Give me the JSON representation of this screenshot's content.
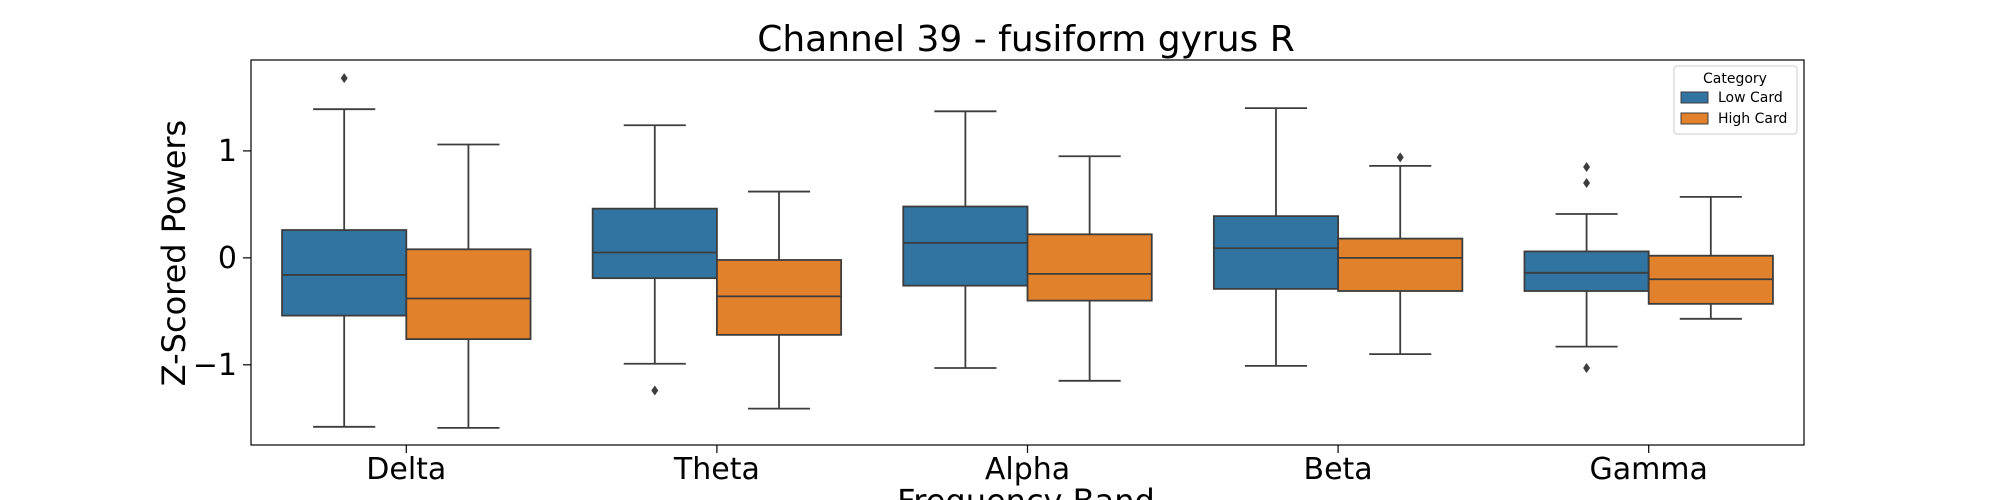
{
  "chart_data": {
    "type": "box",
    "title": "Channel 39 - fusiform gyrus R",
    "xlabel": "Frequency Band",
    "ylabel": "Z-Scored Powers",
    "ylim": [
      -1.75,
      1.85
    ],
    "yticks": [
      1,
      0,
      -1
    ],
    "ytick_labels": [
      "1",
      "0",
      "−1"
    ],
    "categories": [
      "Delta",
      "Theta",
      "Alpha",
      "Beta",
      "Gamma"
    ],
    "legend": {
      "title": "Category",
      "position": "top-right",
      "entries": [
        "Low Card",
        "High Card"
      ]
    },
    "series": [
      {
        "name": "Low Card",
        "color": "#3274a1",
        "boxes": [
          {
            "whisker_low": -1.58,
            "q1": -0.54,
            "median": -0.16,
            "q3": 0.26,
            "whisker_high": 1.39,
            "outliers": [
              1.68
            ]
          },
          {
            "whisker_low": -0.99,
            "q1": -0.19,
            "median": 0.05,
            "q3": 0.46,
            "whisker_high": 1.24,
            "outliers": [
              -1.24
            ]
          },
          {
            "whisker_low": -1.03,
            "q1": -0.26,
            "median": 0.14,
            "q3": 0.48,
            "whisker_high": 1.37,
            "outliers": []
          },
          {
            "whisker_low": -1.01,
            "q1": -0.29,
            "median": 0.09,
            "q3": 0.39,
            "whisker_high": 1.4,
            "outliers": []
          },
          {
            "whisker_low": -0.83,
            "q1": -0.31,
            "median": -0.14,
            "q3": 0.06,
            "whisker_high": 0.41,
            "outliers": [
              0.85,
              0.7,
              -1.03
            ]
          }
        ]
      },
      {
        "name": "High Card",
        "color": "#e1812c",
        "boxes": [
          {
            "whisker_low": -1.59,
            "q1": -0.76,
            "median": -0.38,
            "q3": 0.08,
            "whisker_high": 1.06,
            "outliers": []
          },
          {
            "whisker_low": -1.41,
            "q1": -0.72,
            "median": -0.36,
            "q3": -0.02,
            "whisker_high": 0.62,
            "outliers": []
          },
          {
            "whisker_low": -1.15,
            "q1": -0.4,
            "median": -0.15,
            "q3": 0.22,
            "whisker_high": 0.95,
            "outliers": []
          },
          {
            "whisker_low": -0.9,
            "q1": -0.31,
            "median": 0.0,
            "q3": 0.18,
            "whisker_high": 0.86,
            "outliers": [
              0.94
            ]
          },
          {
            "whisker_low": -0.57,
            "q1": -0.43,
            "median": -0.2,
            "q3": 0.02,
            "whisker_high": 0.57,
            "outliers": []
          }
        ]
      }
    ]
  }
}
